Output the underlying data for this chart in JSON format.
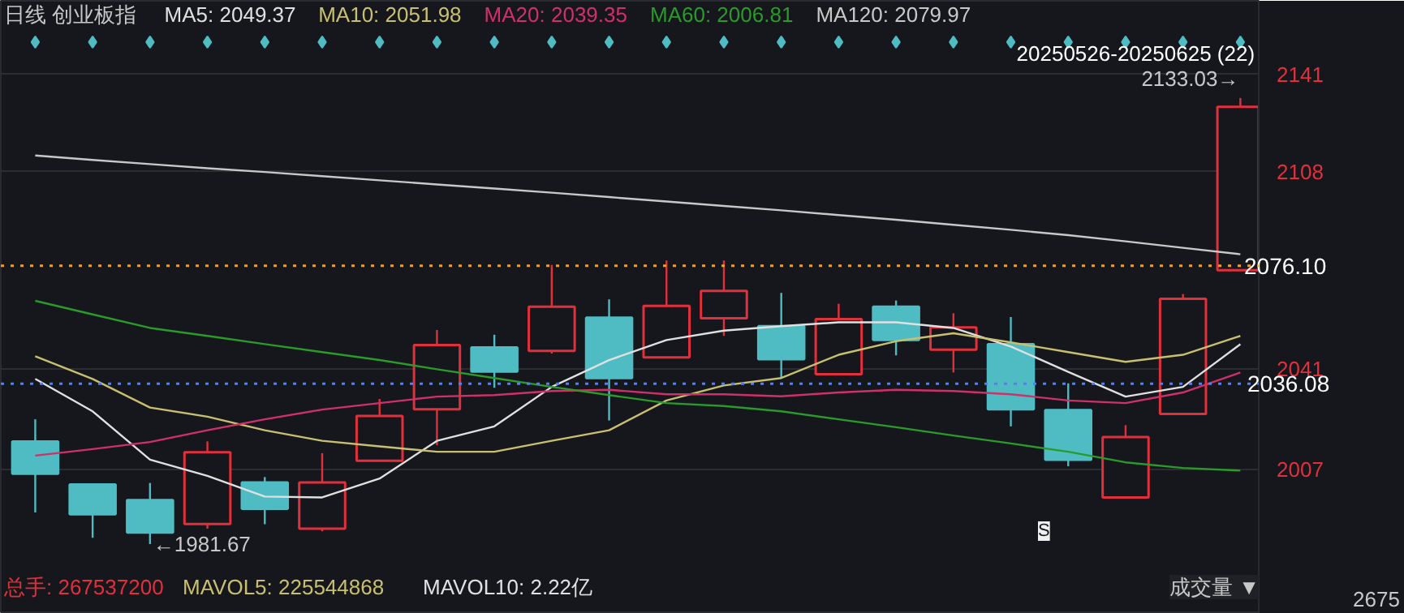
{
  "chart_data": {
    "type": "candlestick",
    "title": "日线  创业板指",
    "categories": [
      null,
      null,
      null,
      null,
      null,
      null,
      null,
      null,
      null,
      null,
      null,
      null,
      null,
      null,
      null,
      null,
      null,
      null,
      null,
      null,
      null,
      null
    ],
    "ohlc": [
      [
        2016.5,
        2024.0,
        1992.4,
        2005.5
      ],
      [
        2001.9,
        2001.9,
        1983.8,
        1991.8
      ],
      [
        1996.6,
        2002.4,
        1981.67,
        1985.6
      ],
      [
        1988.5,
        2016.5,
        1986.9,
        2012.8
      ],
      [
        2002.6,
        2004.4,
        1988.4,
        1993.6
      ],
      [
        1986.9,
        2012.5,
        1986.0,
        2002.6
      ],
      [
        2009.9,
        2030.9,
        2009.9,
        2025.1
      ],
      [
        2027.4,
        2054.3,
        2015.2,
        2049.2
      ],
      [
        2048.4,
        2052.7,
        2034.7,
        2040.2
      ],
      [
        2047.2,
        2076.4,
        2046.3,
        2062.2
      ],
      [
        2058.5,
        2064.7,
        2023.6,
        2038.0
      ],
      [
        2045.0,
        2077.9,
        2045.0,
        2062.5
      ],
      [
        2058.3,
        2077.9,
        2052.3,
        2067.6
      ],
      [
        2055.6,
        2066.9,
        2038.0,
        2044.4
      ],
      [
        2039.3,
        2063.2,
        2039.3,
        2058.0
      ],
      [
        2062.2,
        2064.3,
        2045.7,
        2050.9
      ],
      [
        2047.6,
        2060.0,
        2039.9,
        2055.2
      ],
      [
        2049.5,
        2058.7,
        2021.6,
        2027.4
      ],
      [
        2027.1,
        2036.2,
        2008.1,
        2010.3
      ],
      [
        1997.5,
        2022.0,
        1997.5,
        2018.0
      ],
      [
        2025.8,
        2066.5,
        2025.8,
        2064.9
      ],
      [
        2074.6,
        2133.03,
        2074.6,
        2130.0
      ]
    ],
    "colors": [
      "#4fbcc4",
      "#4fbcc4",
      "#4fbcc4",
      "#e0303c",
      "#4fbcc4",
      "#e0303c",
      "#e0303c",
      "#e0303c",
      "#4fbcc4",
      "#e0303c",
      "#4fbcc4",
      "#e0303c",
      "#e0303c",
      "#4fbcc4",
      "#e0303c",
      "#4fbcc4",
      "#e0303c",
      "#4fbcc4",
      "#4fbcc4",
      "#e0303c",
      "#e0303c",
      "#e0303c"
    ],
    "series": [
      {
        "type": "line",
        "name": "MA5: 2049.37",
        "color": "#e0e0e0",
        "values": [
          2037.7,
          2026.7,
          2010.3,
          2004.8,
          1997.8,
          1997.5,
          2003.9,
          2016.7,
          2021.6,
          2035.0,
          2044.1,
          2050.9,
          2054.1,
          2055.6,
          2056.9,
          2056.9,
          2055.0,
          2048.7,
          2040.1,
          2031.7,
          2035.0,
          2049.5
        ]
      },
      {
        "type": "line",
        "name": "MA10: 2051.98",
        "color": "#c8c070",
        "values": [
          2045.4,
          2037.7,
          2028.0,
          2024.9,
          2020.3,
          2016.7,
          2014.8,
          2013.0,
          2013.0,
          2016.7,
          2020.3,
          2030.4,
          2035.5,
          2038.0,
          2045.9,
          2050.5,
          2053.2,
          2050.1,
          2046.8,
          2043.5,
          2045.9,
          2052.3
        ]
      },
      {
        "type": "line",
        "name": "MA20: 2039.35",
        "color": "#d0306a",
        "values": [
          2011.7,
          2013.9,
          2016.3,
          2020.3,
          2024.0,
          2027.3,
          2029.5,
          2031.7,
          2032.2,
          2033.6,
          2034.0,
          2032.5,
          2032.5,
          2031.8,
          2033.1,
          2034.0,
          2033.6,
          2032.5,
          2030.4,
          2029.5,
          2033.1,
          2039.9
        ]
      },
      {
        "type": "line",
        "name": "MA60: 2006.81",
        "color": "#2a9a2a",
        "values": [
          2064.2,
          2059.6,
          2055.0,
          2052.3,
          2049.5,
          2046.8,
          2044.1,
          2041.0,
          2038.0,
          2035.0,
          2032.2,
          2029.5,
          2028.5,
          2026.7,
          2024.0,
          2021.3,
          2018.5,
          2015.8,
          2013.0,
          2009.4,
          2007.5,
          2006.6
        ]
      },
      {
        "type": "line",
        "name": "MA120: 2079.97",
        "color": "#c8c8c8",
        "values": [
          2113.5,
          2112.0,
          2110.6,
          2109.2,
          2107.9,
          2106.5,
          2105.1,
          2103.7,
          2102.3,
          2100.9,
          2099.4,
          2097.9,
          2096.4,
          2094.9,
          2093.3,
          2091.7,
          2090.0,
          2088.3,
          2086.5,
          2084.4,
          2082.2,
          2080.0
        ]
      },
      {
        "type": "scatter",
        "marker": "diamond",
        "color": "#4fbcc4",
        "values": [
          2152,
          2152,
          2152,
          2152,
          2152,
          2152,
          2152,
          2152,
          2152,
          2152,
          2152,
          2152,
          2152,
          2152,
          2152,
          2152,
          2152,
          2152,
          2152,
          2152,
          2152,
          2152
        ]
      }
    ],
    "ylim": [
      1958,
      2166
    ],
    "yticks": [
      2007,
      2041,
      2108,
      2141
    ],
    "ref_lines": [
      {
        "axis": "y",
        "value": 2076.1,
        "label": "2076.10",
        "color": "#f0a020",
        "line_style": "dotted"
      },
      {
        "axis": "y",
        "value": 2036.08,
        "label": "2036.08",
        "color": "#5b7fe0",
        "line_style": "dotted"
      }
    ],
    "annotations": [
      "20250526-20250625 (22)",
      "2133.03→",
      "←1981.67",
      "S",
      "总手: 267537200",
      "MAVOL5: 225544868",
      "MAVOL10: 2.22亿",
      "成交量 ▼",
      "2675"
    ],
    "grid": "y"
  }
}
